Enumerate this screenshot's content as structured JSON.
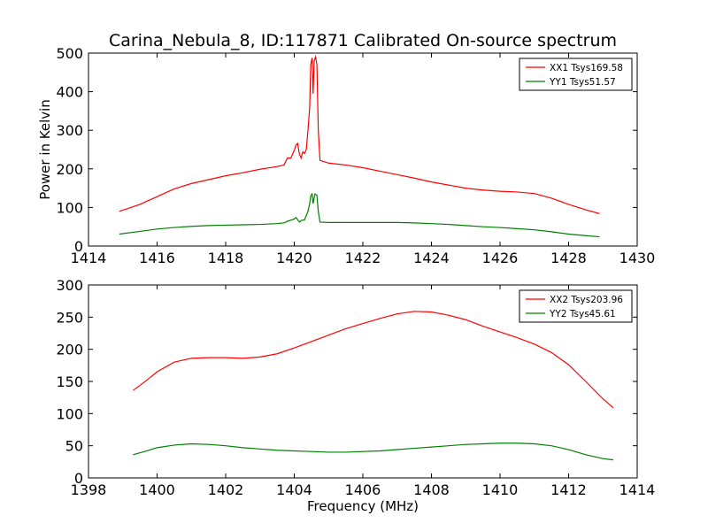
{
  "chart_data": [
    {
      "type": "line",
      "title": "Carina_Nebula_8, ID:117871 Calibrated On-source spectrum",
      "xlabel": "",
      "ylabel": "Power in Kelvin",
      "xlim": [
        1414,
        1430
      ],
      "ylim": [
        0,
        500
      ],
      "xticks": [
        1414,
        1416,
        1418,
        1420,
        1422,
        1424,
        1426,
        1428,
        1430
      ],
      "yticks": [
        0,
        100,
        200,
        300,
        400,
        500
      ],
      "grid": false,
      "legend": "top-right",
      "series": [
        {
          "name": "XX1 Tsys169.58",
          "color": "#ff0000",
          "points": [
            [
              1414.9,
              90
            ],
            [
              1415.5,
              108
            ],
            [
              1416.0,
              128
            ],
            [
              1416.5,
              148
            ],
            [
              1417.0,
              162
            ],
            [
              1417.5,
              172
            ],
            [
              1418.0,
              182
            ],
            [
              1418.5,
              190
            ],
            [
              1419.0,
              199
            ],
            [
              1419.5,
              206
            ],
            [
              1419.7,
              210
            ],
            [
              1419.8,
              228
            ],
            [
              1419.9,
              228
            ],
            [
              1420.0,
              248
            ],
            [
              1420.05,
              262
            ],
            [
              1420.1,
              266
            ],
            [
              1420.15,
              238
            ],
            [
              1420.2,
              228
            ],
            [
              1420.25,
              244
            ],
            [
              1420.3,
              240
            ],
            [
              1420.35,
              250
            ],
            [
              1420.4,
              300
            ],
            [
              1420.45,
              360
            ],
            [
              1420.48,
              470
            ],
            [
              1420.52,
              488
            ],
            [
              1420.55,
              395
            ],
            [
              1420.58,
              480
            ],
            [
              1420.62,
              490
            ],
            [
              1420.66,
              470
            ],
            [
              1420.7,
              300
            ],
            [
              1420.75,
              222
            ],
            [
              1421.0,
              215
            ],
            [
              1421.5,
              210
            ],
            [
              1422.0,
              203
            ],
            [
              1422.5,
              194
            ],
            [
              1423.0,
              185
            ],
            [
              1423.5,
              176
            ],
            [
              1424.0,
              166
            ],
            [
              1424.5,
              158
            ],
            [
              1425.0,
              150
            ],
            [
              1425.5,
              145
            ],
            [
              1426.0,
              142
            ],
            [
              1426.5,
              140
            ],
            [
              1427.0,
              136
            ],
            [
              1427.5,
              124
            ],
            [
              1428.0,
              108
            ],
            [
              1428.5,
              94
            ],
            [
              1428.9,
              84
            ]
          ]
        },
        {
          "name": "YY1 Tsys51.57",
          "color": "#008000",
          "points": [
            [
              1414.9,
              31
            ],
            [
              1415.5,
              38
            ],
            [
              1416.0,
              44
            ],
            [
              1416.5,
              48
            ],
            [
              1417.0,
              51
            ],
            [
              1417.5,
              53
            ],
            [
              1418.0,
              54
            ],
            [
              1418.5,
              55
            ],
            [
              1419.0,
              56
            ],
            [
              1419.5,
              58
            ],
            [
              1419.7,
              60
            ],
            [
              1419.8,
              64
            ],
            [
              1420.0,
              70
            ],
            [
              1420.05,
              74
            ],
            [
              1420.1,
              68
            ],
            [
              1420.15,
              62
            ],
            [
              1420.2,
              66
            ],
            [
              1420.3,
              68
            ],
            [
              1420.4,
              90
            ],
            [
              1420.45,
              110
            ],
            [
              1420.48,
              130
            ],
            [
              1420.52,
              135
            ],
            [
              1420.55,
              110
            ],
            [
              1420.6,
              135
            ],
            [
              1420.66,
              132
            ],
            [
              1420.7,
              90
            ],
            [
              1420.75,
              62
            ],
            [
              1421.0,
              61
            ],
            [
              1421.5,
              61
            ],
            [
              1422.0,
              61
            ],
            [
              1422.5,
              61
            ],
            [
              1423.0,
              61
            ],
            [
              1423.5,
              60
            ],
            [
              1424.0,
              58
            ],
            [
              1424.5,
              56
            ],
            [
              1425.0,
              53
            ],
            [
              1425.5,
              50
            ],
            [
              1426.0,
              48
            ],
            [
              1426.5,
              45
            ],
            [
              1427.0,
              42
            ],
            [
              1427.5,
              37
            ],
            [
              1428.0,
              31
            ],
            [
              1428.5,
              27
            ],
            [
              1428.9,
              24
            ]
          ]
        }
      ]
    },
    {
      "type": "line",
      "title": "",
      "xlabel": "Frequency (MHz)",
      "ylabel": "",
      "xlim": [
        1398,
        1414
      ],
      "ylim": [
        0,
        300
      ],
      "xticks": [
        1398,
        1400,
        1402,
        1404,
        1406,
        1408,
        1410,
        1412,
        1414
      ],
      "yticks": [
        0,
        50,
        100,
        150,
        200,
        250,
        300
      ],
      "grid": false,
      "legend": "top-right",
      "series": [
        {
          "name": "XX2 Tsys203.96",
          "color": "#ff0000",
          "points": [
            [
              1399.3,
              136
            ],
            [
              1399.7,
              152
            ],
            [
              1400.0,
              165
            ],
            [
              1400.5,
              180
            ],
            [
              1401.0,
              186
            ],
            [
              1401.5,
              187
            ],
            [
              1402.0,
              187
            ],
            [
              1402.5,
              186
            ],
            [
              1403.0,
              188
            ],
            [
              1403.5,
              193
            ],
            [
              1404.0,
              202
            ],
            [
              1404.5,
              212
            ],
            [
              1405.0,
              222
            ],
            [
              1405.5,
              232
            ],
            [
              1406.0,
              240
            ],
            [
              1406.5,
              248
            ],
            [
              1407.0,
              255
            ],
            [
              1407.5,
              259
            ],
            [
              1408.0,
              258
            ],
            [
              1408.5,
              253
            ],
            [
              1409.0,
              246
            ],
            [
              1409.5,
              236
            ],
            [
              1410.0,
              227
            ],
            [
              1410.5,
              218
            ],
            [
              1411.0,
              208
            ],
            [
              1411.5,
              195
            ],
            [
              1412.0,
              176
            ],
            [
              1412.5,
              150
            ],
            [
              1413.0,
              123
            ],
            [
              1413.3,
              109
            ]
          ]
        },
        {
          "name": "YY2 Tsys45.61",
          "color": "#008000",
          "points": [
            [
              1399.3,
              36
            ],
            [
              1399.7,
              42
            ],
            [
              1400.0,
              47
            ],
            [
              1400.5,
              51
            ],
            [
              1401.0,
              53
            ],
            [
              1401.5,
              52
            ],
            [
              1402.0,
              50
            ],
            [
              1402.5,
              47
            ],
            [
              1403.0,
              45
            ],
            [
              1403.5,
              43
            ],
            [
              1404.0,
              42
            ],
            [
              1404.5,
              41
            ],
            [
              1405.0,
              40
            ],
            [
              1405.5,
              40
            ],
            [
              1406.0,
              41
            ],
            [
              1406.5,
              42
            ],
            [
              1407.0,
              44
            ],
            [
              1407.5,
              46
            ],
            [
              1408.0,
              48
            ],
            [
              1408.5,
              50
            ],
            [
              1409.0,
              52
            ],
            [
              1409.5,
              53
            ],
            [
              1410.0,
              54
            ],
            [
              1410.5,
              54
            ],
            [
              1411.0,
              53
            ],
            [
              1411.5,
              50
            ],
            [
              1412.0,
              44
            ],
            [
              1412.5,
              36
            ],
            [
              1413.0,
              30
            ],
            [
              1413.3,
              28
            ]
          ]
        }
      ]
    }
  ]
}
